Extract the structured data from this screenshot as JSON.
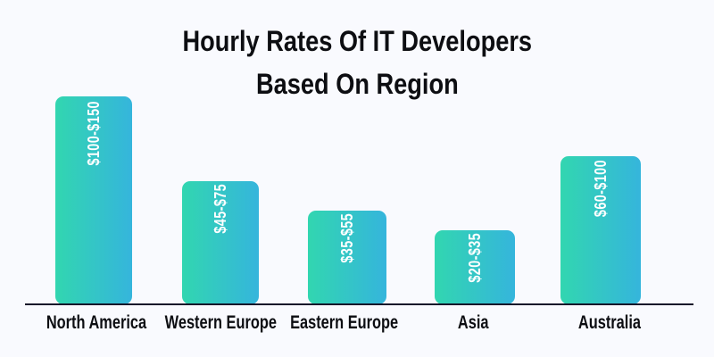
{
  "title": {
    "lines": [
      "Hourly Rates Of IT Developers",
      "Based On Region"
    ]
  },
  "theme": {
    "background": "#f9fafe",
    "text": "#0d0e12",
    "axis-line": "#15152a",
    "bar-grad-start": "#32d6b0",
    "bar-grad-end": "#35b5dc",
    "bar-label": "#ffffff"
  },
  "chart_data": {
    "type": "bar",
    "title": "Hourly Rates Of IT Developers Based On Region",
    "unit": "USD per hour",
    "categories": [
      "North America",
      "Western Europe",
      "Eastern Europe",
      "Asia",
      "Australia"
    ],
    "value_labels": [
      "$100-$150",
      "$45-$75",
      "$35-$55",
      "$20-$35",
      "$60-$100"
    ],
    "values": [
      [
        100,
        150
      ],
      [
        45,
        75
      ],
      [
        35,
        55
      ],
      [
        20,
        35
      ],
      [
        60,
        100
      ]
    ],
    "xlabel": "",
    "ylabel": "",
    "grid": false,
    "legend": false,
    "bar_color_gradient": [
      "#32d6b0",
      "#35b5dc"
    ],
    "bars": [
      {
        "category": "North America",
        "label": "$100-$150",
        "min": 100,
        "max": 150,
        "height_px": "233px"
      },
      {
        "category": "Western Europe",
        "label": "$45-$75",
        "min": 45,
        "max": 75,
        "height_px": "138px"
      },
      {
        "category": "Eastern Europe",
        "label": "$35-$55",
        "min": 35,
        "max": 55,
        "height_px": "105px"
      },
      {
        "category": "Asia",
        "label": "$20-$35",
        "min": 20,
        "max": 35,
        "height_px": "83px"
      },
      {
        "category": "Australia",
        "label": "$60-$100",
        "min": 60,
        "max": 100,
        "height_px": "166px"
      }
    ]
  }
}
